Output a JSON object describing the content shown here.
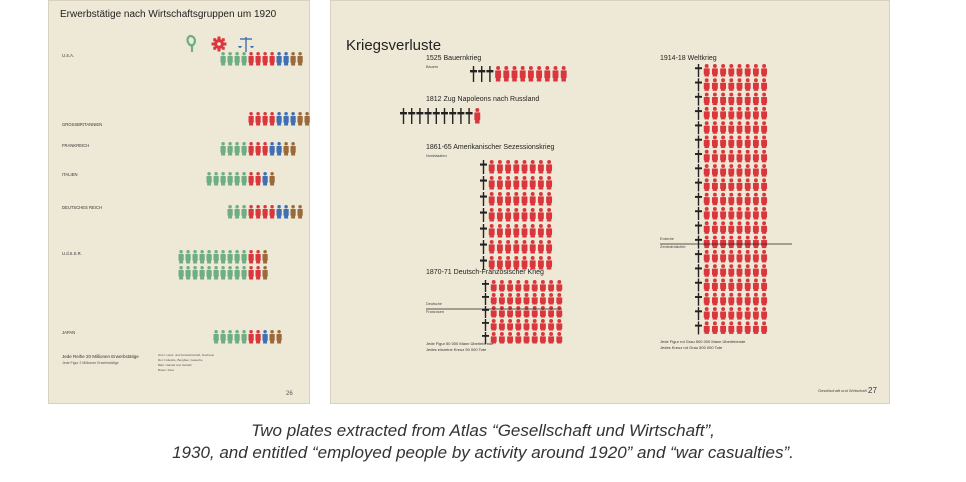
{
  "colors": {
    "background": "#eee8d6",
    "green": "#6fae82",
    "red": "#d9373d",
    "blue": "#3f6fb5",
    "brown": "#9a6a3a",
    "black": "#222222"
  },
  "caption": {
    "line1": "Two plates extracted from Atlas “Gesellschaft und Wirtschaft”,",
    "line2": "1930, and entitled “employed people by activity around 1920” and “war casualties”."
  },
  "chart_data": [
    {
      "type": "pictogram",
      "title": "Erwerbstätige nach Wirtschaftsgruppen um 1920",
      "icons": [
        "sprout-icon",
        "gear-icon",
        "scales-icon"
      ],
      "categories": [
        "U.S.A.",
        "GROSSBRITANNIEN",
        "FRANKREICH",
        "ITALIEN",
        "DEUTSCHES REICH",
        "U.d.S.S.R.",
        "JAPAN"
      ],
      "series": [
        {
          "name": "",
          "color": "green",
          "values": [
            4,
            0,
            4,
            6,
            3,
            20,
            5
          ]
        },
        {
          "name": "",
          "color": "red",
          "values": [
            4,
            4,
            3,
            2,
            4,
            2,
            2
          ]
        },
        {
          "name": "",
          "color": "blue",
          "values": [
            2,
            3,
            2,
            1,
            2,
            0,
            1
          ]
        },
        {
          "name": "",
          "color": "brown",
          "values": [
            2,
            3,
            2,
            1,
            2,
            1,
            2
          ]
        }
      ],
      "legend_text": [
        "Jede Reihe 20 Millionen Erwerbstätige",
        "Jede Figur 2 Millionen Erwerbstätige"
      ],
      "legend_groups": [
        "Grün: Land- und Forstwirtschaft, Fischerei",
        "Rot: Industrie, Bergbau, Gewerbe",
        "Blau: Handel und Verkehr",
        "Braun: Rest"
      ],
      "page_number": "26"
    },
    {
      "type": "pictogram",
      "title": "Kriegsverluste",
      "wars": [
        {
          "label": "1525 Bauernkrieg",
          "sublabel": "Bauern",
          "crosses": 3,
          "figures": 9
        },
        {
          "label": "1812 Zug Napoleons nach Russland",
          "sublabel": "",
          "crosses": 9,
          "figures": 1
        },
        {
          "label": "1861-65 Amerikanischer Sezessionskrieg",
          "sublabel": "Nordstaaten",
          "rows": 7,
          "crosses_per_row": 1,
          "figures_per_row": 8
        },
        {
          "label": "1870-71 Deutsch-Französischer Krieg",
          "sublabels": [
            "Deutsche",
            "Franzosen"
          ],
          "rows": 5,
          "crosses_per_row": 1,
          "figures_per_row": 9
        },
        {
          "label": "1914-18 Weltkrieg",
          "sublabels": [
            "Entente",
            "Zentralmächte"
          ],
          "rows": 19,
          "crosses_per_row": 1,
          "figures_per_row": 8
        }
      ],
      "legend": [
        "Jede Figur 50 000 Mann Überlebende",
        "Jedes einzelne Kreuz 50 000 Tote"
      ],
      "legend_ww1": [
        "Jede Figur rot Grau 500 000 Mann Überlebende",
        "Jedes Kreuz rot Grau 500 000 Tote"
      ],
      "footer": "Gesellschaft und Wirtschaft",
      "page_number": "27"
    }
  ]
}
